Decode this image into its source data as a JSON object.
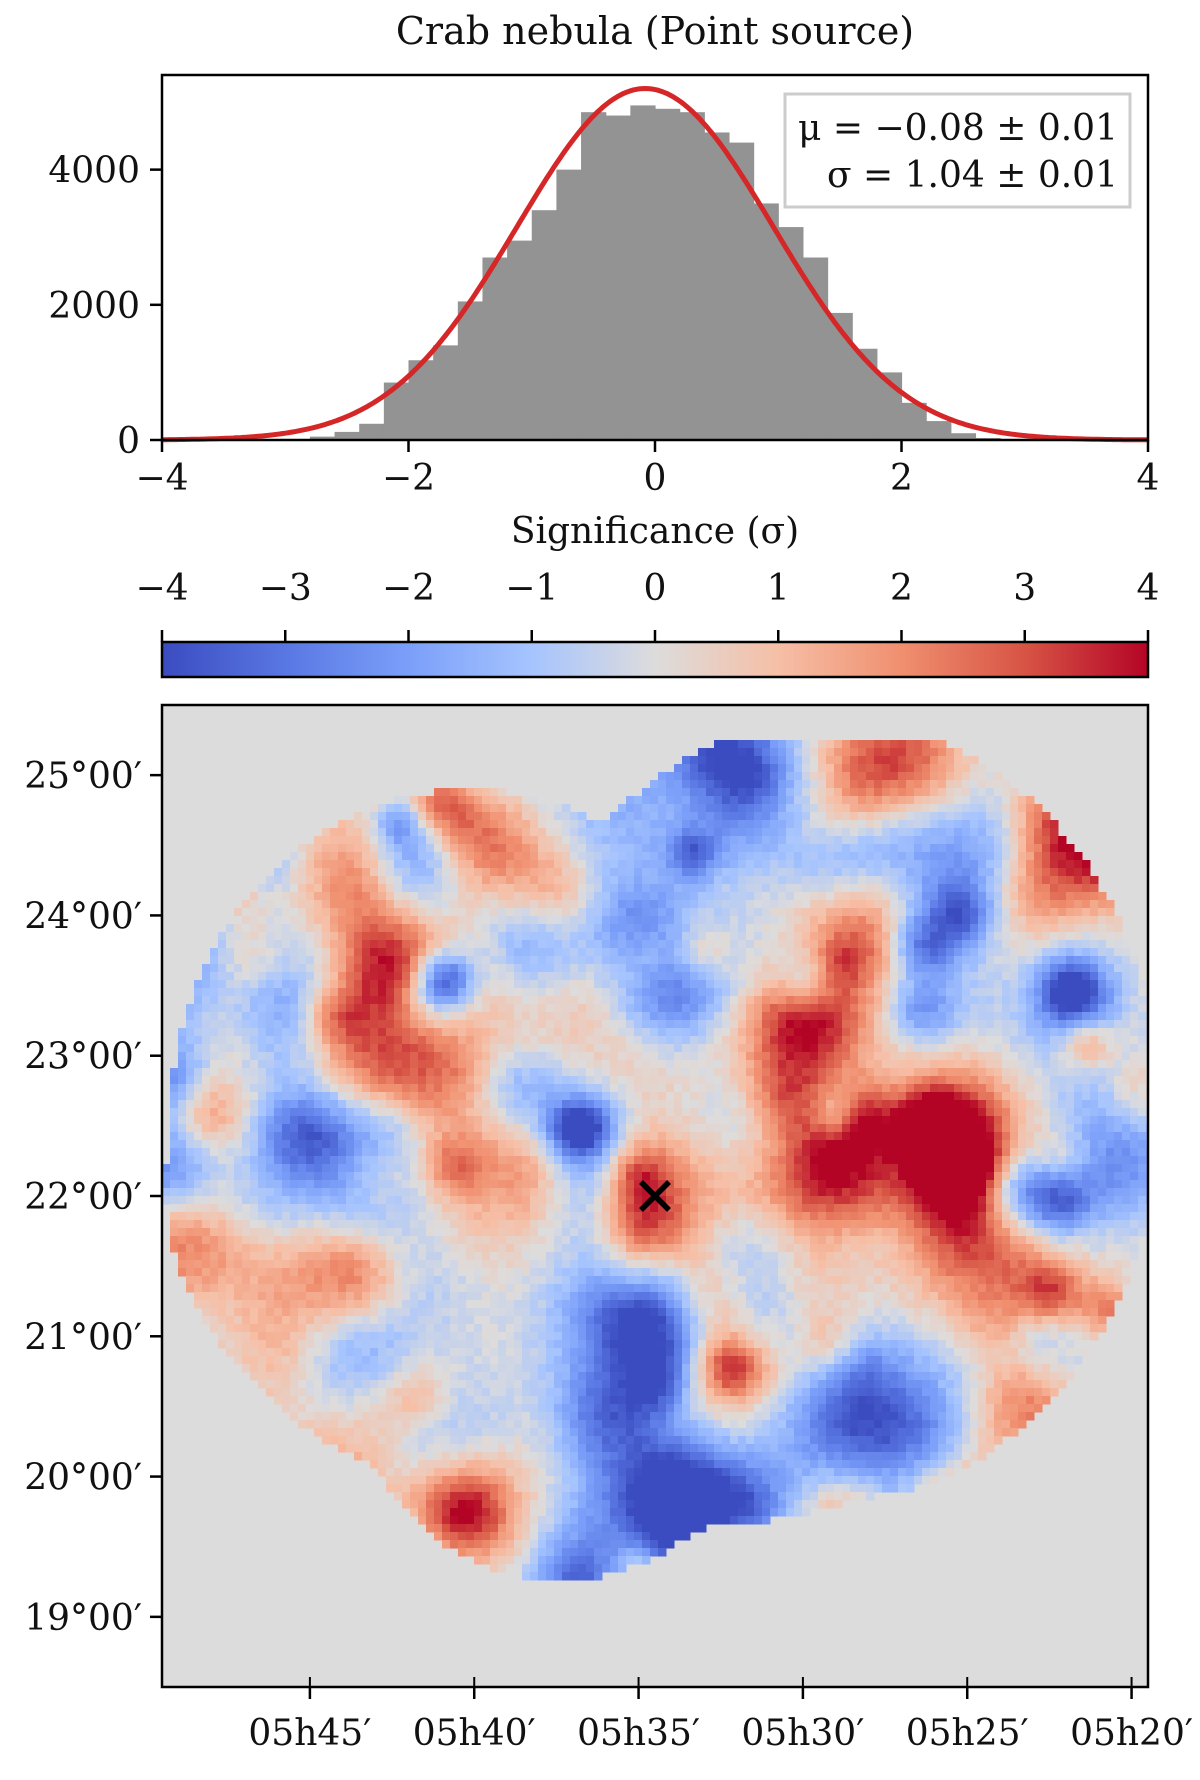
{
  "chart_data": [
    {
      "type": "bar",
      "title": "Crab nebula   (Point source)",
      "xlabel": "Significance (σ)",
      "ylabel": "",
      "xlim": [
        -4,
        4
      ],
      "ylim": [
        0,
        5400
      ],
      "x_ticks": [
        "−4",
        "−2",
        "0",
        "2",
        "4"
      ],
      "x_tick_values": [
        -4,
        -2,
        0,
        2,
        4
      ],
      "y_ticks": [
        "0",
        "2000",
        "4000"
      ],
      "y_tick_values": [
        0,
        2000,
        4000
      ],
      "bin_width": 0.2,
      "bins": [
        {
          "x0": -4.0,
          "value": 0
        },
        {
          "x0": -3.8,
          "value": 0
        },
        {
          "x0": -3.6,
          "value": 0
        },
        {
          "x0": -3.4,
          "value": 0
        },
        {
          "x0": -3.2,
          "value": 0
        },
        {
          "x0": -3.0,
          "value": 0
        },
        {
          "x0": -2.8,
          "value": 50
        },
        {
          "x0": -2.6,
          "value": 120
        },
        {
          "x0": -2.4,
          "value": 240
        },
        {
          "x0": -2.2,
          "value": 850
        },
        {
          "x0": -2.0,
          "value": 1180
        },
        {
          "x0": -1.8,
          "value": 1400
        },
        {
          "x0": -1.6,
          "value": 2050
        },
        {
          "x0": -1.4,
          "value": 2700
        },
        {
          "x0": -1.2,
          "value": 2950
        },
        {
          "x0": -1.0,
          "value": 3400
        },
        {
          "x0": -0.8,
          "value": 4000
        },
        {
          "x0": -0.6,
          "value": 4850
        },
        {
          "x0": -0.4,
          "value": 4800
        },
        {
          "x0": -0.2,
          "value": 4950
        },
        {
          "x0": 0.0,
          "value": 4900
        },
        {
          "x0": 0.2,
          "value": 4850
        },
        {
          "x0": 0.4,
          "value": 4550
        },
        {
          "x0": 0.6,
          "value": 4400
        },
        {
          "x0": 0.8,
          "value": 3500
        },
        {
          "x0": 1.0,
          "value": 3150
        },
        {
          "x0": 1.2,
          "value": 2700
        },
        {
          "x0": 1.4,
          "value": 1880
        },
        {
          "x0": 1.6,
          "value": 1350
        },
        {
          "x0": 1.8,
          "value": 1000
        },
        {
          "x0": 2.0,
          "value": 550
        },
        {
          "x0": 2.2,
          "value": 280
        },
        {
          "x0": 2.4,
          "value": 100
        },
        {
          "x0": 2.6,
          "value": 30
        },
        {
          "x0": 2.8,
          "value": 0
        },
        {
          "x0": 3.0,
          "value": 0
        },
        {
          "x0": 3.2,
          "value": 0
        },
        {
          "x0": 3.4,
          "value": 0
        },
        {
          "x0": 3.6,
          "value": 0
        },
        {
          "x0": 3.8,
          "value": 0
        }
      ],
      "fit": {
        "type": "gaussian",
        "mu": -0.08,
        "sigma": 1.04,
        "amplitude": 5200,
        "color": "#d62728"
      },
      "bar_color": "#939393",
      "legend": {
        "placement": "top-right",
        "mu_text": "μ = −0.08  ±  0.01",
        "sigma_text": "σ = 1.04  ±  0.01"
      }
    },
    {
      "type": "colorbar",
      "colormap": "coolwarm",
      "range": [
        -4,
        4
      ],
      "ticks": [
        "−4",
        "−3",
        "−2",
        "−1",
        "0",
        "1",
        "2",
        "3",
        "4"
      ],
      "tick_values": [
        -4,
        -3,
        -2,
        -1,
        0,
        1,
        2,
        3,
        4
      ],
      "colors": {
        "low": "#3b4cc0",
        "mid": "#dddddd",
        "high": "#b40426"
      }
    },
    {
      "type": "heatmap",
      "description_values": "significance sky map, coolwarm colormap, range −4 to 4",
      "background_color": "#dcdcdc",
      "ra_ticks": [
        "05h45′",
        "05h40′",
        "05h35′",
        "05h30′",
        "05h25′",
        "05h20′"
      ],
      "ra_tick_values_min": [
        45,
        40,
        35,
        30,
        25,
        20
      ],
      "ra_range_min": [
        49.5,
        19.5
      ],
      "dec_ticks": [
        "25°00′",
        "24°00′",
        "23°00′",
        "22°00′",
        "21°00′",
        "20°00′",
        "19°00′"
      ],
      "dec_tick_values": [
        25,
        24,
        23,
        22,
        21,
        20,
        19
      ],
      "dec_range": [
        18.5,
        25.5
      ],
      "marker": {
        "label": "×",
        "ra_min": 34.5,
        "dec": 22.0,
        "name": "Crab position"
      }
    }
  ]
}
